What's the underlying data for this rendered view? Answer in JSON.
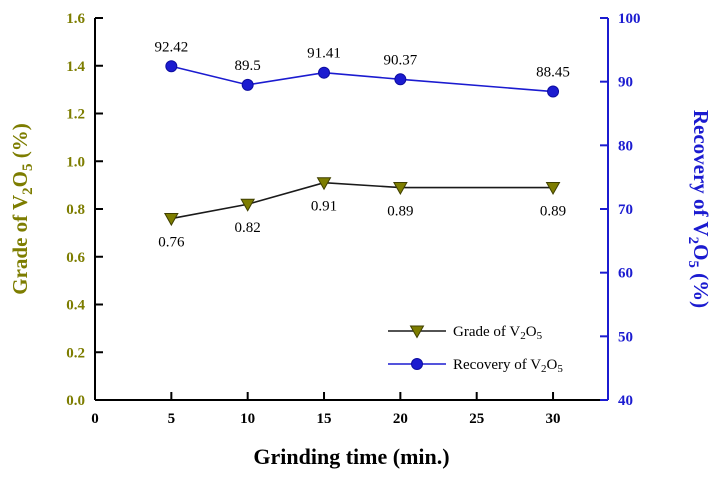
{
  "figure": {
    "background": "#ffffff"
  },
  "chart_data": {
    "type": "line",
    "title": "",
    "xlabel": "Grinding time (min.)",
    "ylabel_left": "Grade of V2O5 (%)",
    "ylabel_right": "Recovery of V2O5 (%)",
    "x": [
      5,
      10,
      15,
      20,
      30
    ],
    "xlim": [
      0,
      33.6
    ],
    "xticks": [
      "0",
      "5",
      "10",
      "15",
      "20",
      "25",
      "30"
    ],
    "ylim_left": [
      0.0,
      1.6
    ],
    "yticks_left": [
      "0.0",
      "0.2",
      "0.4",
      "0.6",
      "0.8",
      "1.0",
      "1.2",
      "1.4",
      "1.6"
    ],
    "ylim_right": [
      40,
      100
    ],
    "yticks_right": [
      "40",
      "50",
      "60",
      "70",
      "80",
      "90",
      "100"
    ],
    "grid": false,
    "legend_position": "lower-right-inside",
    "series": [
      {
        "name": "Grade of V2O5",
        "axis": "left",
        "marker": "triangle-down",
        "marker_color": "#7d7d00",
        "line_color": "#1a1a1a",
        "values": [
          0.76,
          0.82,
          0.91,
          0.89,
          0.89
        ],
        "point_labels": [
          "0.76",
          "0.82",
          "0.91",
          "0.89",
          "0.89"
        ],
        "label_side": "below"
      },
      {
        "name": "Recovery of V2O5",
        "axis": "right",
        "marker": "circle",
        "marker_color": "#1b1bd0",
        "line_color": "#1b1bd0",
        "values": [
          92.42,
          89.5,
          91.41,
          90.37,
          88.45
        ],
        "point_labels": [
          "92.42",
          "89.5",
          "91.41",
          "90.37",
          "88.45"
        ],
        "label_side": "above"
      }
    ],
    "colors": {
      "left_axis_text": "#7d7d00",
      "right_axis_text": "#1b1bd0",
      "x_axis_text": "#000000",
      "left_spine": "#000000",
      "right_spine": "#1b1bd0",
      "bottom_spine": "#000000"
    }
  }
}
